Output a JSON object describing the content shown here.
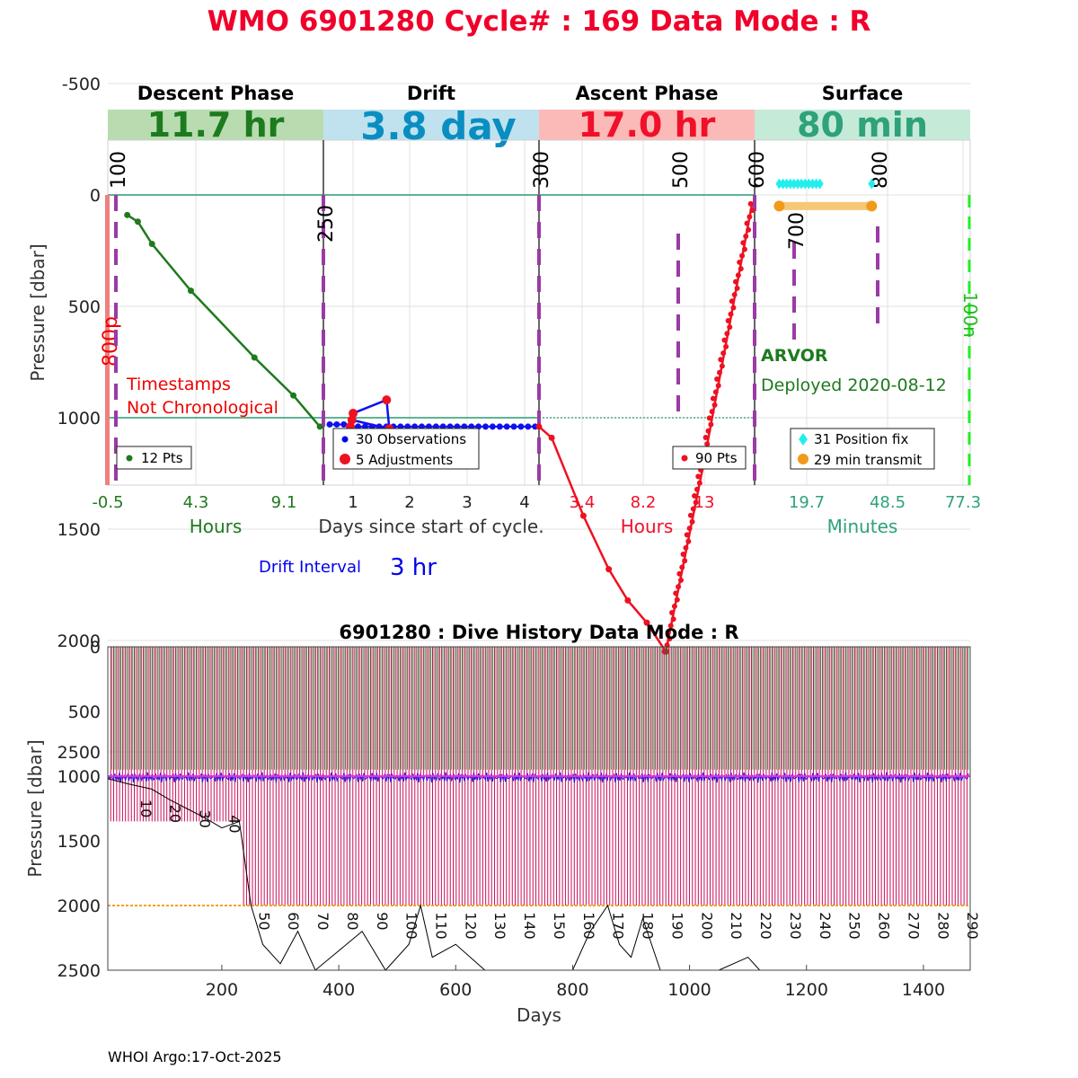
{
  "header": {
    "title": "WMO 6901280   Cycle# : 169   Data Mode : R",
    "title_color": "#f0002a"
  },
  "phases": [
    {
      "name": "Descent Phase",
      "duration": "11.7 hr",
      "band_color": "#b8dcb0",
      "text_color": "#1e7a1e"
    },
    {
      "name": "Drift",
      "duration": "3.8 day",
      "band_color": "#bfe2ee",
      "text_color": "#0a8ec2"
    },
    {
      "name": "Ascent Phase",
      "duration": "17.0 hr",
      "band_color": "#fbbab8",
      "text_color": "#f0102a"
    },
    {
      "name": "Surface",
      "duration": "80 min",
      "band_color": "#c6ead8",
      "text_color": "#2ea27a"
    }
  ],
  "top_axes": {
    "ylabel": "Pressure [dbar]",
    "yticks": [
      "-500",
      "0",
      "500",
      "1000",
      "1500",
      "2000",
      "2500"
    ],
    "ytick_values": [
      -500,
      0,
      500,
      1000,
      1500,
      2000,
      2500
    ],
    "ylim": [
      -750,
      2600
    ],
    "descent_xticks": [
      "-0.5",
      "4.3",
      "9.1"
    ],
    "drift_xticks": [
      "1",
      "2",
      "3",
      "4"
    ],
    "ascent_xticks": [
      "3.4",
      "8.2",
      "13"
    ],
    "surface_xticks": [
      "19.7",
      "48.5",
      "77.3"
    ],
    "xlabel_hours_left": "Hours",
    "xlabel_days": "Days since start of cycle.",
    "xlabel_hours_right": "Hours",
    "xlabel_minutes": "Minutes",
    "marker_labels": [
      "100",
      "250",
      "300",
      "500",
      "600",
      "700",
      "800"
    ],
    "side_label_left": "800p",
    "side_label_right": "100n"
  },
  "annotations": {
    "timestamps_line1": "Timestamps",
    "timestamps_line2": "Not Chronological",
    "float_type": "ARVOR",
    "deployed": "Deployed 2020-08-12",
    "drift_interval_label": "Drift Interval",
    "drift_interval_value": "3 hr"
  },
  "legends": {
    "descent": "12 Pts",
    "drift_obs": "30 Observations",
    "drift_adj": "5 Adjustments",
    "ascent": "90 Pts",
    "surface_fix": "31 Position fix",
    "surface_tx": "29 min transmit"
  },
  "chart_data": [
    {
      "type": "line",
      "title": "Cycle 169 profile phases",
      "ylabel": "Pressure [dbar]",
      "series": [
        {
          "name": "Descent",
          "unit": "hours",
          "x": [
            0.6,
            1.2,
            2.0,
            4.2,
            7.8,
            10.0,
            11.5
          ],
          "y": [
            90,
            120,
            220,
            430,
            730,
            900,
            1040
          ]
        },
        {
          "name": "Drift observations",
          "unit": "days",
          "x": [
            0.1,
            0.5,
            1.0,
            1.5,
            2.0,
            2.5,
            3.0,
            3.5,
            3.8
          ],
          "y": [
            1030,
            1035,
            1040,
            1040,
            1040,
            1040,
            1040,
            1040,
            1040
          ]
        },
        {
          "name": "Drift adjustments",
          "unit": "days",
          "x": [
            0.45,
            0.5,
            1.1,
            1.15,
            0.48
          ],
          "y": [
            1040,
            980,
            920,
            1050,
            1010
          ]
        },
        {
          "name": "Ascent",
          "unit": "hours",
          "x": [
            0.0,
            1.0,
            3.5,
            5.5,
            7.0,
            8.5,
            10.0,
            13.0,
            16.8
          ],
          "y": [
            1040,
            1090,
            1440,
            1680,
            1820,
            1920,
            2050,
            1200,
            40
          ]
        },
        {
          "name": "Position fix",
          "unit": "minutes",
          "x": [
            18,
            25,
            32,
            48
          ],
          "y": [
            -50,
            -50,
            -50,
            -50
          ]
        },
        {
          "name": "Transmit",
          "unit": "minutes",
          "x": [
            18,
            48
          ],
          "y": [
            50,
            50
          ]
        }
      ]
    },
    {
      "type": "line",
      "title": "6901280 : Dive History      Data Mode : R",
      "xlabel": "Days",
      "ylabel": "Pressure [dbar]",
      "xlim": [
        5,
        1480
      ],
      "ylim": [
        0,
        2500
      ],
      "xticks": [
        200,
        400,
        600,
        800,
        1000,
        1200,
        1400
      ],
      "yticks": [
        0,
        500,
        1000,
        1500,
        2000,
        2500
      ],
      "cycle_labels": [
        "10",
        "20",
        "30",
        "40",
        "50",
        "60",
        "70",
        "80",
        "90",
        "100",
        "110",
        "120",
        "130",
        "140",
        "150",
        "160",
        "170",
        "180",
        "190",
        "200",
        "210",
        "220",
        "230",
        "240",
        "250",
        "260",
        "270",
        "280",
        "290"
      ],
      "cycles_count": 292,
      "drift_pressure_mean": 1000,
      "profile_pressure": 2000
    }
  ],
  "footer": {
    "credit": "WHOI Argo:17-Oct-2025"
  }
}
